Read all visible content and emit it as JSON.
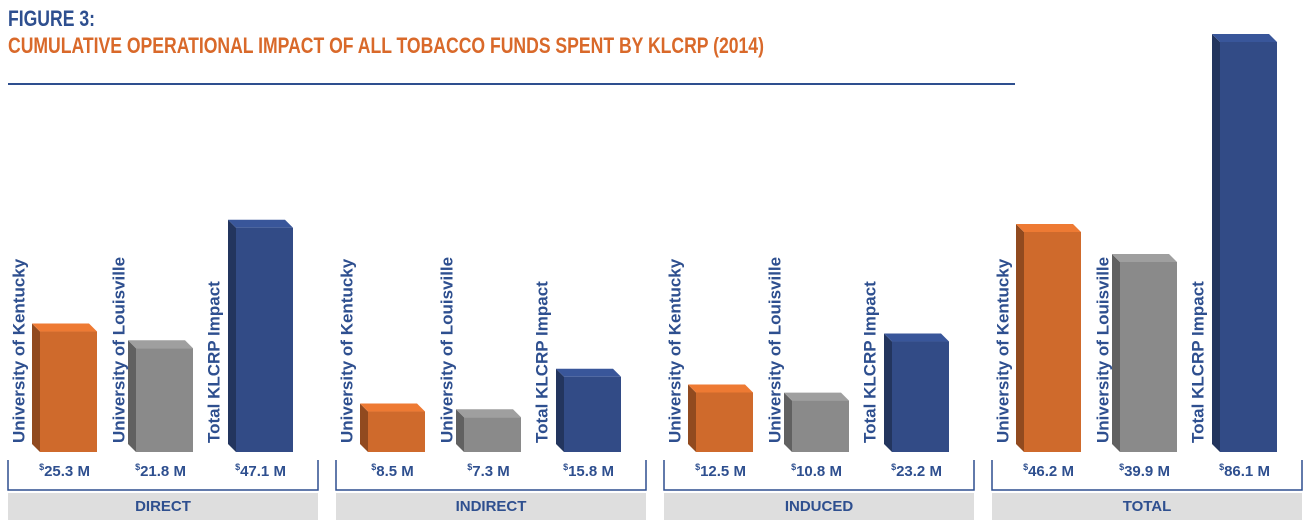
{
  "chart_data": {
    "type": "bar3d",
    "title": "FIGURE 3:",
    "subtitle": "CUMULATIVE OPERATIONAL IMPACT OF ALL TOBACCO FUNDS SPENT BY KLCRP (2014)",
    "categories": [
      "DIRECT",
      "INDIRECT",
      "INDUCED",
      "TOTAL"
    ],
    "series": [
      {
        "name": "University of Kentucky",
        "color": "#cf6a2c",
        "values": [
          25.3,
          8.5,
          12.5,
          46.2
        ],
        "value_labels": [
          "$25.3 M",
          "$8.5 M",
          "$12.5 M",
          "$46.2 M"
        ]
      },
      {
        "name": "University of Louisville",
        "color": "#8a8a8a",
        "values": [
          21.8,
          7.3,
          10.8,
          39.9
        ],
        "value_labels": [
          "$21.8 M",
          "$7.3 M",
          "$10.8 M",
          "$39.9 M"
        ]
      },
      {
        "name": "Total KLCRP Impact",
        "color": "#324b86",
        "values": [
          47.1,
          15.8,
          23.2,
          86.1
        ],
        "value_labels": [
          "$47.1 M",
          "$15.8 M",
          "$23.2 M",
          "$86.1 M"
        ]
      }
    ]
  }
}
